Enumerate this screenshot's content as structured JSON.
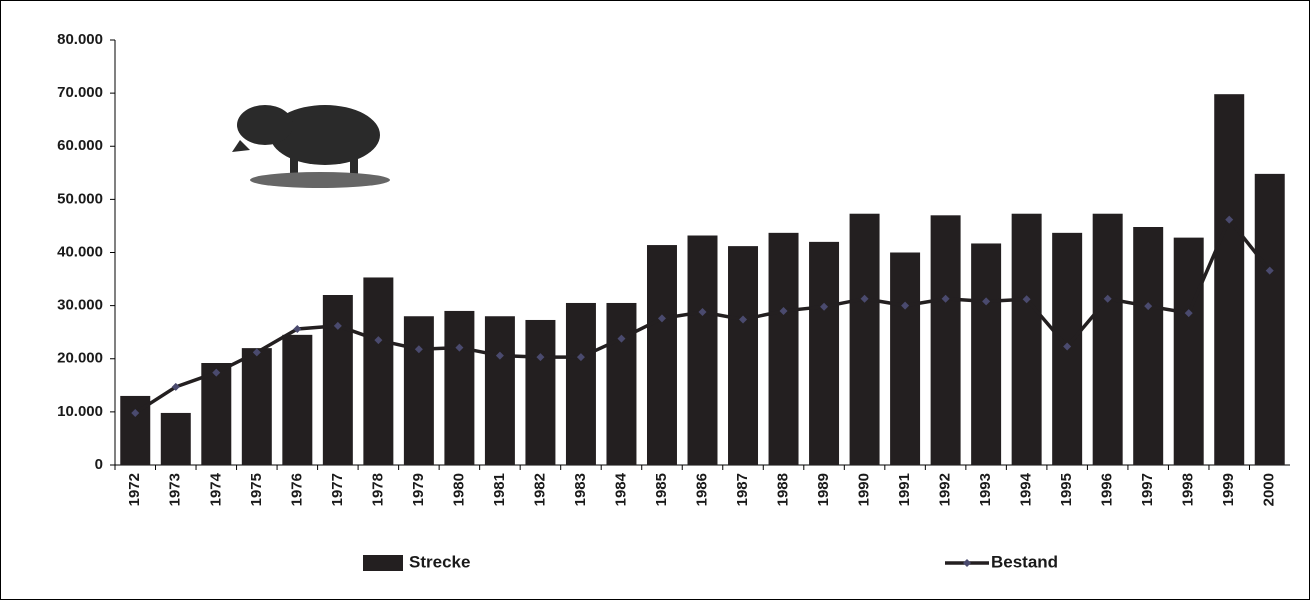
{
  "chart_data": {
    "type": "bar-line",
    "categories": [
      "1972",
      "1973",
      "1974",
      "1975",
      "1976",
      "1977",
      "1978",
      "1979",
      "1980",
      "1981",
      "1982",
      "1983",
      "1984",
      "1985",
      "1986",
      "1987",
      "1988",
      "1989",
      "1990",
      "1991",
      "1992",
      "1993",
      "1994",
      "1995",
      "1996",
      "1997",
      "1998",
      "1999",
      "2000"
    ],
    "series": [
      {
        "name": "Strecke",
        "type": "bar",
        "color": "#231f20",
        "values": [
          13000,
          9800,
          19200,
          22000,
          24500,
          32000,
          35300,
          28000,
          29000,
          28000,
          27300,
          30500,
          30500,
          41400,
          43200,
          41200,
          43700,
          42000,
          47300,
          40000,
          47000,
          41700,
          47300,
          43700,
          47300,
          44800,
          42800,
          69800,
          54800
        ]
      },
      {
        "name": "Bestand",
        "type": "line",
        "color": "#231f20",
        "marker_color": "#4a4a6e",
        "values": [
          9800,
          14700,
          17400,
          21200,
          25600,
          26200,
          23500,
          21800,
          22100,
          20600,
          20300,
          20300,
          23800,
          27600,
          28800,
          27400,
          29000,
          29800,
          31300,
          30000,
          31300,
          30800,
          31200,
          22300,
          31300,
          29900,
          28600,
          46200,
          36600
        ]
      }
    ],
    "ylim": [
      0,
      80000
    ],
    "yticks": [
      0,
      {
        "value": 10000,
        "label": "10.000"
      },
      {
        "value": 20000,
        "label": "20.000"
      },
      {
        "value": 30000,
        "label": "30.000"
      },
      {
        "value": 40000,
        "label": "40.000"
      },
      {
        "value": 50000,
        "label": "50.000"
      },
      {
        "value": 60000,
        "label": "60.000"
      },
      {
        "value": 70000,
        "label": "70.000"
      },
      {
        "value": 80000,
        "label": "80.000"
      }
    ],
    "grid": false,
    "legend": "bottom"
  }
}
